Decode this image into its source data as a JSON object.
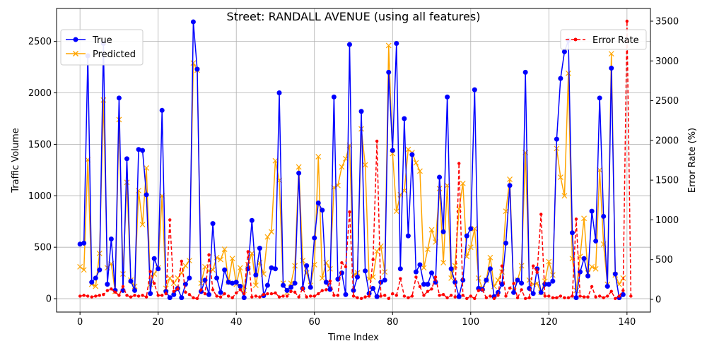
{
  "chart_data": {
    "type": "line",
    "title": "Street: RANDALL AVENUE (using all features)",
    "xlabel": "Time Index",
    "ylabel": "Traffic Volume",
    "y2label": "Error Rate (%)",
    "xlim": [
      -6,
      146
    ],
    "ylim": [
      -130,
      2820
    ],
    "y2lim": [
      -160,
      3660
    ],
    "xticks": [
      0,
      20,
      40,
      60,
      80,
      100,
      120,
      140
    ],
    "yticks": [
      0,
      500,
      1000,
      1500,
      2000,
      2500
    ],
    "y2ticks": [
      0,
      500,
      1000,
      1500,
      2000,
      2500,
      3000,
      3500
    ],
    "grid": true,
    "legend_left": "upper-left",
    "legend_right": "upper-right",
    "series": [
      {
        "name": "True",
        "axis": "left",
        "color": "#0000ff",
        "marker": "circle",
        "line": "solid",
        "values": [
          530,
          540,
          2360,
          160,
          200,
          280,
          2480,
          140,
          580,
          80,
          1950,
          80,
          1360,
          170,
          80,
          1450,
          1440,
          1010,
          50,
          390,
          290,
          1830,
          70,
          10,
          40,
          100,
          10,
          140,
          200,
          2690,
          2230,
          70,
          180,
          40,
          730,
          200,
          60,
          280,
          160,
          150,
          160,
          120,
          10,
          290,
          760,
          230,
          490,
          30,
          130,
          300,
          290,
          2000,
          130,
          80,
          110,
          150,
          1220,
          100,
          320,
          110,
          590,
          930,
          860,
          160,
          90,
          1960,
          190,
          250,
          40,
          2470,
          80,
          210,
          1820,
          270,
          50,
          100,
          20,
          160,
          180,
          2200,
          1440,
          2480,
          290,
          1750,
          610,
          1400,
          260,
          330,
          140,
          140,
          250,
          160,
          1180,
          650,
          1960,
          290,
          160,
          20,
          180,
          610,
          680,
          2030,
          100,
          90,
          180,
          290,
          20,
          60,
          140,
          540,
          1100,
          60,
          180,
          150,
          2200,
          100,
          50,
          290,
          60,
          140,
          140,
          170,
          1550,
          2140,
          2400,
          2510,
          640,
          10,
          260,
          390,
          220,
          850,
          560,
          1950,
          800,
          120,
          2240,
          240,
          10,
          40
        ]
      },
      {
        "name": "Predicted",
        "axis": "left",
        "color": "#ffa500",
        "marker": "x",
        "line": "solid",
        "values": [
          310,
          280,
          1350,
          140,
          120,
          440,
          1930,
          300,
          340,
          70,
          1740,
          240,
          1130,
          180,
          120,
          1050,
          720,
          1270,
          140,
          240,
          300,
          1000,
          100,
          200,
          150,
          200,
          250,
          320,
          370,
          2290,
          2220,
          150,
          310,
          270,
          280,
          400,
          380,
          480,
          160,
          390,
          140,
          300,
          80,
          330,
          440,
          130,
          350,
          240,
          600,
          650,
          1340,
          1150,
          150,
          60,
          150,
          320,
          1280,
          370,
          250,
          130,
          330,
          1380,
          200,
          350,
          290,
          1080,
          1100,
          1280,
          1360,
          1490,
          230,
          250,
          1650,
          1300,
          190,
          210,
          460,
          510,
          260,
          2460,
          1410,
          850,
          1010,
          1050,
          1450,
          1420,
          1320,
          1240,
          300,
          480,
          670,
          550,
          1070,
          350,
          1100,
          200,
          320,
          870,
          1120,
          410,
          500,
          680,
          200,
          100,
          180,
          400,
          120,
          180,
          260,
          850,
          1160,
          80,
          180,
          320,
          1420,
          180,
          140,
          150,
          60,
          170,
          360,
          230,
          1460,
          1180,
          1000,
          2190,
          390,
          80,
          410,
          780,
          250,
          310,
          290,
          1250,
          530,
          140,
          2380,
          230,
          140,
          200
        ]
      },
      {
        "name": "Error Rate",
        "axis": "right",
        "color": "#ff0000",
        "marker": "dot",
        "line": "dashed",
        "values": [
          40,
          50,
          40,
          30,
          40,
          50,
          60,
          110,
          130,
          90,
          50,
          160,
          50,
          30,
          50,
          40,
          50,
          30,
          350,
          200,
          50,
          50,
          70,
          1000,
          100,
          130,
          480,
          90,
          60,
          20,
          10,
          120,
          70,
          560,
          120,
          40,
          30,
          70,
          40,
          20,
          80,
          120,
          70,
          600,
          30,
          40,
          30,
          60,
          70,
          70,
          80,
          30,
          40,
          40,
          100,
          90,
          30,
          140,
          30,
          40,
          40,
          70,
          110,
          120,
          230,
          50,
          50,
          460,
          410,
          1100,
          40,
          20,
          10,
          30,
          40,
          500,
          1990,
          40,
          50,
          10,
          70,
          50,
          260,
          40,
          20,
          40,
          280,
          160,
          50,
          100,
          130,
          280,
          50,
          60,
          20,
          50,
          30,
          1710,
          50,
          10,
          40,
          10,
          110,
          120,
          20,
          40,
          10,
          50,
          420,
          40,
          140,
          200,
          20,
          120,
          10,
          20,
          420,
          340,
          1070,
          40,
          40,
          20,
          20,
          40,
          20,
          20,
          40,
          1010,
          40,
          30,
          30,
          160,
          30,
          40,
          20,
          40,
          100,
          10,
          40,
          110,
          3500,
          40
        ]
      }
    ]
  }
}
